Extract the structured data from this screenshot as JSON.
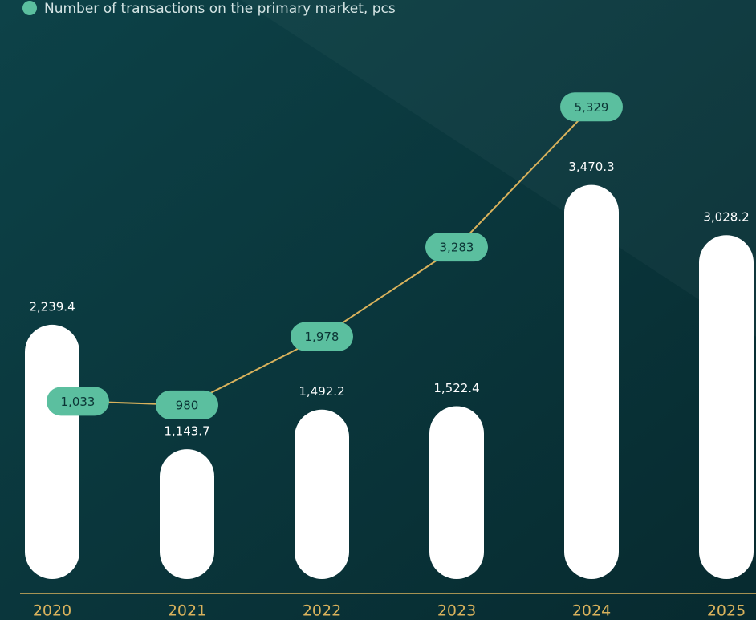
{
  "chart_data": {
    "type": "bar-line",
    "categories": [
      "2020",
      "2021",
      "2022",
      "2023",
      "2024",
      "2025"
    ],
    "series": [
      {
        "type": "bar",
        "color": "#ffffff",
        "values": [
          2239.4,
          1143.7,
          1492.2,
          1522.4,
          3470.3,
          3028.2
        ],
        "value_labels": [
          "2,239.4",
          "1,143.7",
          "1,492.2",
          "1,522.4",
          "3,470.3",
          "3,028.2"
        ]
      },
      {
        "type": "line",
        "name": "Number of transactions on the primary market, pcs",
        "color": "#5bbf9f",
        "line_color": "#d9b25c",
        "axis": "y2",
        "values": [
          1033,
          980,
          1978,
          3283,
          5329,
          null
        ],
        "value_labels": [
          "1,033",
          "980",
          "1,978",
          "3,283",
          "5,329",
          null
        ]
      }
    ],
    "ylim": [
      0,
      4400
    ],
    "y2lim": [
      -1560,
      5730
    ],
    "legend": "top-left"
  }
}
